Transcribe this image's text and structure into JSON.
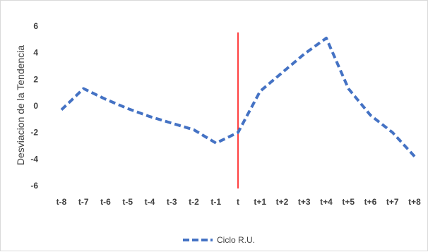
{
  "chart_data": {
    "type": "line",
    "title": "",
    "xlabel": "",
    "ylabel": "Desviacion de la Tendencia",
    "ylim": [
      -6,
      6
    ],
    "yticks": [
      6,
      4,
      2,
      0,
      -2,
      -4,
      -6
    ],
    "categories": [
      "t-8",
      "t-7",
      "t-6",
      "t-5",
      "t-4",
      "t-3",
      "t-2",
      "t-1",
      "t",
      "t+1",
      "t+2",
      "t+3",
      "t+4",
      "t+5",
      "t+6",
      "t+7",
      "t+8"
    ],
    "series": [
      {
        "name": "Ciclo R.U.",
        "color": "#4472c4",
        "style": "dashed",
        "values": [
          -0.3,
          1.3,
          0.5,
          -0.2,
          -0.8,
          -1.3,
          -1.8,
          -2.8,
          -2.0,
          1.1,
          2.5,
          3.9,
          5.1,
          1.3,
          -0.7,
          -2.0,
          -3.8
        ]
      }
    ],
    "marker_line": {
      "category": "t",
      "color": "#ff0000"
    },
    "grid": false,
    "legend": "bottom-center"
  }
}
